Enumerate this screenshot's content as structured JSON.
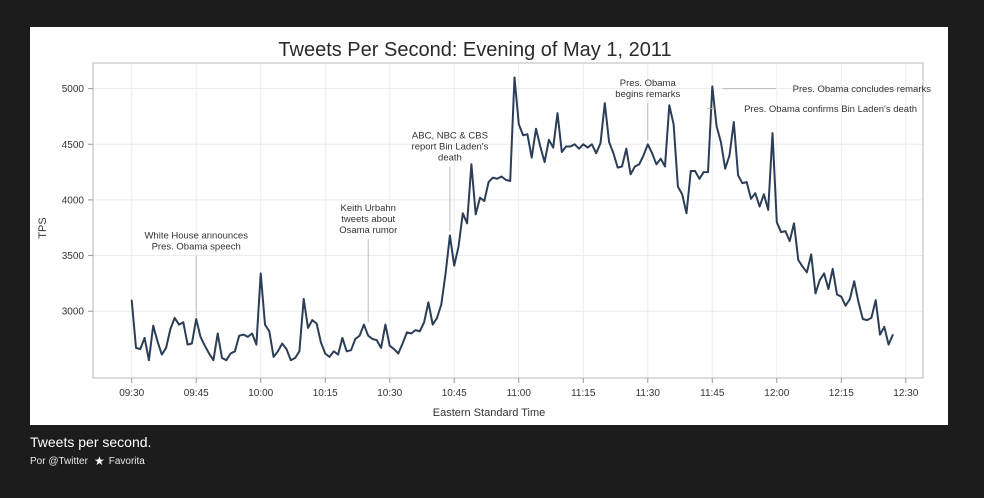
{
  "chart_data": {
    "type": "line",
    "title": "Tweets Per Second: Evening of May 1, 2011",
    "xlabel": "Eastern Standard Time",
    "ylabel": "TPS",
    "x_ticks": [
      "09:30",
      "09:45",
      "10:00",
      "10:15",
      "10:30",
      "10:45",
      "11:00",
      "11:15",
      "11:30",
      "11:45",
      "12:00",
      "12:15",
      "12:30"
    ],
    "y_ticks": [
      3000,
      3500,
      4000,
      4500,
      5000
    ],
    "xlim_minutes": [
      -9,
      184
    ],
    "ylim": [
      2400,
      5230
    ],
    "grid": true,
    "series": [
      {
        "name": "TPS",
        "color": "#2c3e57",
        "points": [
          [
            0,
            3100
          ],
          [
            1,
            2670
          ],
          [
            2,
            2660
          ],
          [
            3,
            2760
          ],
          [
            4,
            2560
          ],
          [
            5,
            2870
          ],
          [
            6,
            2730
          ],
          [
            7,
            2610
          ],
          [
            8,
            2670
          ],
          [
            9,
            2840
          ],
          [
            10,
            2940
          ],
          [
            11,
            2880
          ],
          [
            12,
            2900
          ],
          [
            13,
            2700
          ],
          [
            14,
            2710
          ],
          [
            15,
            2930
          ],
          [
            16,
            2770
          ],
          [
            17,
            2690
          ],
          [
            18,
            2620
          ],
          [
            19,
            2560
          ],
          [
            20,
            2800
          ],
          [
            21,
            2580
          ],
          [
            22,
            2560
          ],
          [
            23,
            2620
          ],
          [
            24,
            2640
          ],
          [
            25,
            2780
          ],
          [
            26,
            2790
          ],
          [
            27,
            2770
          ],
          [
            28,
            2800
          ],
          [
            29,
            2700
          ],
          [
            30,
            3340
          ],
          [
            31,
            2880
          ],
          [
            32,
            2820
          ],
          [
            33,
            2590
          ],
          [
            34,
            2640
          ],
          [
            35,
            2710
          ],
          [
            36,
            2660
          ],
          [
            37,
            2560
          ],
          [
            38,
            2580
          ],
          [
            39,
            2640
          ],
          [
            40,
            3110
          ],
          [
            41,
            2850
          ],
          [
            42,
            2920
          ],
          [
            43,
            2890
          ],
          [
            44,
            2720
          ],
          [
            45,
            2620
          ],
          [
            46,
            2590
          ],
          [
            47,
            2640
          ],
          [
            48,
            2610
          ],
          [
            49,
            2760
          ],
          [
            50,
            2640
          ],
          [
            51,
            2650
          ],
          [
            52,
            2750
          ],
          [
            53,
            2780
          ],
          [
            54,
            2880
          ],
          [
            55,
            2780
          ],
          [
            56,
            2750
          ],
          [
            57,
            2740
          ],
          [
            58,
            2670
          ],
          [
            59,
            2880
          ],
          [
            60,
            2690
          ],
          [
            61,
            2660
          ],
          [
            62,
            2620
          ],
          [
            63,
            2710
          ],
          [
            64,
            2810
          ],
          [
            65,
            2800
          ],
          [
            66,
            2830
          ],
          [
            67,
            2820
          ],
          [
            68,
            2900
          ],
          [
            69,
            3080
          ],
          [
            70,
            2880
          ],
          [
            71,
            2940
          ],
          [
            72,
            3060
          ],
          [
            73,
            3340
          ],
          [
            74,
            3680
          ],
          [
            75,
            3410
          ],
          [
            76,
            3580
          ],
          [
            77,
            3880
          ],
          [
            78,
            3790
          ],
          [
            79,
            4320
          ],
          [
            80,
            3870
          ],
          [
            81,
            4020
          ],
          [
            82,
            3990
          ],
          [
            83,
            4160
          ],
          [
            84,
            4200
          ],
          [
            85,
            4190
          ],
          [
            86,
            4210
          ],
          [
            87,
            4180
          ],
          [
            88,
            4170
          ],
          [
            89,
            5100
          ],
          [
            90,
            4680
          ],
          [
            91,
            4580
          ],
          [
            92,
            4590
          ],
          [
            93,
            4380
          ],
          [
            94,
            4640
          ],
          [
            95,
            4480
          ],
          [
            96,
            4340
          ],
          [
            97,
            4540
          ],
          [
            98,
            4470
          ],
          [
            99,
            4780
          ],
          [
            100,
            4430
          ],
          [
            101,
            4480
          ],
          [
            102,
            4480
          ],
          [
            103,
            4500
          ],
          [
            104,
            4460
          ],
          [
            105,
            4500
          ],
          [
            106,
            4470
          ],
          [
            107,
            4500
          ],
          [
            108,
            4420
          ],
          [
            109,
            4510
          ],
          [
            110,
            4870
          ],
          [
            111,
            4520
          ],
          [
            112,
            4420
          ],
          [
            113,
            4290
          ],
          [
            114,
            4300
          ],
          [
            115,
            4460
          ],
          [
            116,
            4230
          ],
          [
            117,
            4300
          ],
          [
            118,
            4320
          ],
          [
            119,
            4400
          ],
          [
            120,
            4500
          ],
          [
            121,
            4420
          ],
          [
            122,
            4320
          ],
          [
            123,
            4370
          ],
          [
            124,
            4300
          ],
          [
            125,
            4850
          ],
          [
            126,
            4680
          ],
          [
            127,
            4120
          ],
          [
            128,
            4050
          ],
          [
            129,
            3880
          ],
          [
            130,
            4260
          ],
          [
            131,
            4260
          ],
          [
            132,
            4190
          ],
          [
            133,
            4250
          ],
          [
            134,
            4250
          ],
          [
            135,
            5020
          ],
          [
            136,
            4660
          ],
          [
            137,
            4520
          ],
          [
            138,
            4280
          ],
          [
            139,
            4400
          ],
          [
            140,
            4700
          ],
          [
            141,
            4220
          ],
          [
            142,
            4150
          ],
          [
            143,
            4160
          ],
          [
            144,
            4010
          ],
          [
            145,
            4060
          ],
          [
            146,
            3940
          ],
          [
            147,
            4050
          ],
          [
            148,
            3910
          ],
          [
            149,
            4600
          ],
          [
            150,
            3800
          ],
          [
            151,
            3710
          ],
          [
            152,
            3720
          ],
          [
            153,
            3630
          ],
          [
            154,
            3790
          ],
          [
            155,
            3460
          ],
          [
            156,
            3400
          ],
          [
            157,
            3350
          ],
          [
            158,
            3510
          ],
          [
            159,
            3160
          ],
          [
            160,
            3280
          ],
          [
            161,
            3340
          ],
          [
            162,
            3200
          ],
          [
            163,
            3380
          ],
          [
            164,
            3150
          ],
          [
            165,
            3130
          ],
          [
            166,
            3050
          ],
          [
            167,
            3110
          ],
          [
            168,
            3270
          ],
          [
            169,
            3080
          ],
          [
            170,
            2930
          ],
          [
            171,
            2920
          ],
          [
            172,
            2940
          ],
          [
            173,
            3100
          ],
          [
            174,
            2790
          ],
          [
            175,
            2860
          ],
          [
            176,
            2700
          ],
          [
            177,
            2790
          ]
        ]
      }
    ],
    "annotations": [
      {
        "lines": [
          "White House announces",
          "Pres. Obama speech"
        ],
        "x": 15,
        "y_from": 2930,
        "y_to": 3500,
        "anchor": "above"
      },
      {
        "lines": [
          "Keith Urbahn",
          "tweets about",
          "Osama rumor"
        ],
        "x": 55,
        "y_from": 2880,
        "y_to": 3650,
        "anchor": "above"
      },
      {
        "lines": [
          "ABC, NBC & CBS",
          "report Bin Laden's",
          "death"
        ],
        "x": 74,
        "y_from": 3700,
        "y_to": 4300,
        "anchor": "above"
      },
      {
        "lines": [
          "Pres. Obama",
          "begins remarks"
        ],
        "x": 120,
        "y_from": 4520,
        "y_to": 4870,
        "anchor": "above"
      },
      {
        "lines": [
          "Pres. Obama confirms Bin Laden's death"
        ],
        "x": 135,
        "y": 4820,
        "anchor": "right"
      },
      {
        "lines": [
          "Pres. Obama concludes remarks"
        ],
        "x": 137,
        "y": 5000,
        "anchor": "right"
      }
    ]
  },
  "caption": {
    "title": "Tweets per second.",
    "by": "Por @Twitter",
    "favorite_label": "Favorita",
    "favorite_icon": "star-icon"
  }
}
